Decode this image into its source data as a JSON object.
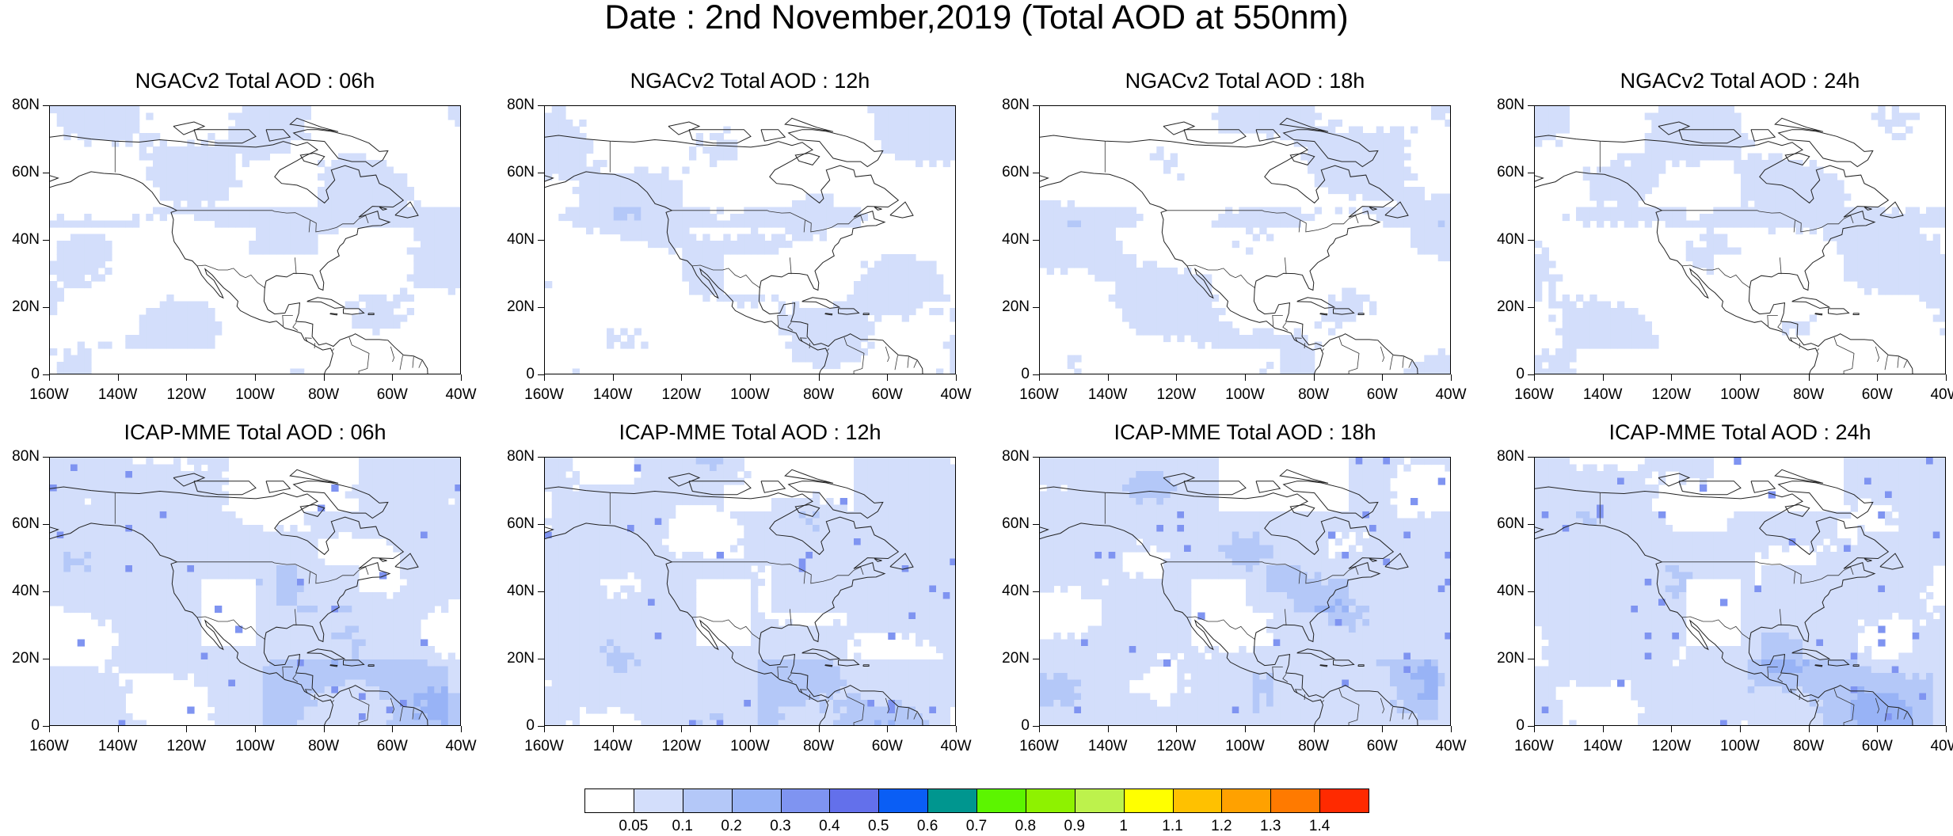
{
  "title": "Date : 2nd November,2019 (Total AOD at 550nm)",
  "panels": [
    {
      "title": "NGACv2 Total AOD : 06h"
    },
    {
      "title": "NGACv2 Total AOD : 12h"
    },
    {
      "title": "NGACv2 Total AOD : 18h"
    },
    {
      "title": "NGACv2 Total AOD : 24h"
    },
    {
      "title": "ICAP-MME Total AOD : 06h"
    },
    {
      "title": "ICAP-MME Total AOD : 12h"
    },
    {
      "title": "ICAP-MME Total AOD : 18h"
    },
    {
      "title": "ICAP-MME Total AOD : 24h"
    }
  ],
  "lat_ticks": [
    "80N",
    "60N",
    "40N",
    "20N",
    "0"
  ],
  "lon_ticks": [
    "160W",
    "140W",
    "120W",
    "100W",
    "80W",
    "60W",
    "40W"
  ],
  "colorbar": {
    "colors": [
      "#ffffff",
      "#d3defb",
      "#b4c8f8",
      "#98b3f6",
      "#7f94f1",
      "#6370eb",
      "#0a5ef5",
      "#00968f",
      "#5cf500",
      "#8ef200",
      "#bdf24c",
      "#ffff00",
      "#ffc100",
      "#ffa100",
      "#ff7a00",
      "#ff2a00"
    ],
    "labels": [
      "0.05",
      "0.1",
      "0.2",
      "0.3",
      "0.4",
      "0.5",
      "0.6",
      "0.7",
      "0.8",
      "0.9",
      "1",
      "1.1",
      "1.2",
      "1.3",
      "1.4"
    ]
  }
}
